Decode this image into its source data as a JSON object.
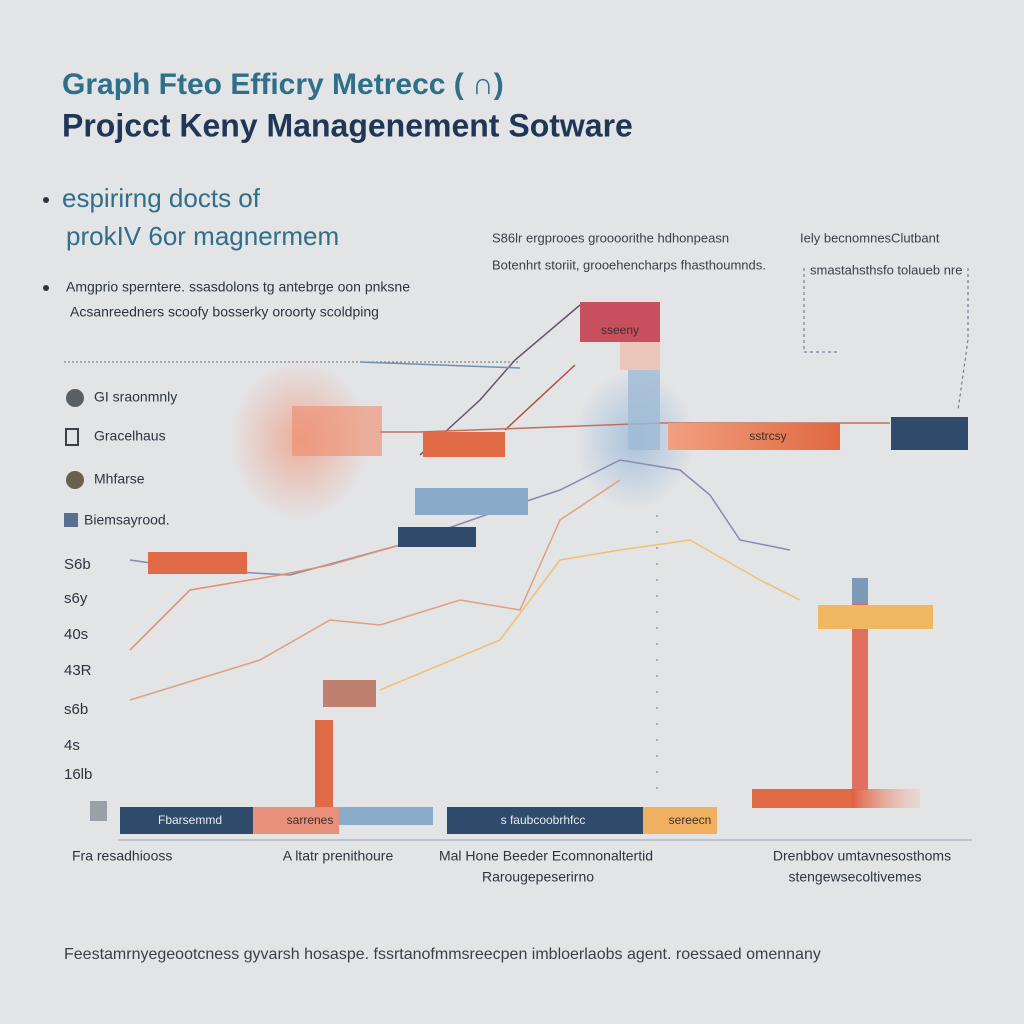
{
  "header": {
    "title": "Graph Fteo Efficry Metrecc ( ∩)",
    "subtitle": "Projcct Keny Managenement Sotware"
  },
  "bullets": [
    {
      "lines": [
        "espirirng docts of",
        "prokIV 6or magnermem"
      ]
    },
    {
      "lines": [
        "Amgprio sperntere. ssasdolons tg antebrge oon pnksne",
        "Acsanreedners scoofy bosserky oroorty scoldping"
      ]
    }
  ],
  "notes": [
    {
      "lines": [
        "S86lr ergprooes groooorithe hdhonpeasn",
        "Botenhrt storiit, grooehencharps fhasthoumnds."
      ]
    },
    {
      "lines": [
        "Iely becnomnesClutbant",
        "smastahsthsfo tolaueb nre"
      ]
    }
  ],
  "legend": [
    "GI sraonmnly",
    "Gracelhaus",
    "Mhfarse",
    "Biemsayrood."
  ],
  "y_labels": [
    "S6b",
    "s6y",
    "40s",
    "43R",
    "s6b",
    "4s",
    "16lb"
  ],
  "bar_labels": [
    "sseeny",
    "sstrcsy",
    "Fbarsemmd",
    "sarrenes",
    "s faubcoobrhfcc",
    "sereecn"
  ],
  "x_labels": [
    {
      "lines": [
        "Fra resadhiooss"
      ]
    },
    {
      "lines": [
        "A ltatr prenithoure"
      ]
    },
    {
      "lines": [
        "Mal Hone Beeder Ecomnonaltertid",
        "Rarougepeserirno"
      ]
    },
    {
      "lines": [
        "Drenbbov umtavnesosthoms",
        "stengewsecoltivemes"
      ]
    }
  ],
  "footer": "Feestamrnyegeootcness gyvarsh hosaspe. fssrtanofmmsreecpen imbloerlaobs agent. roessaed omennany"
}
